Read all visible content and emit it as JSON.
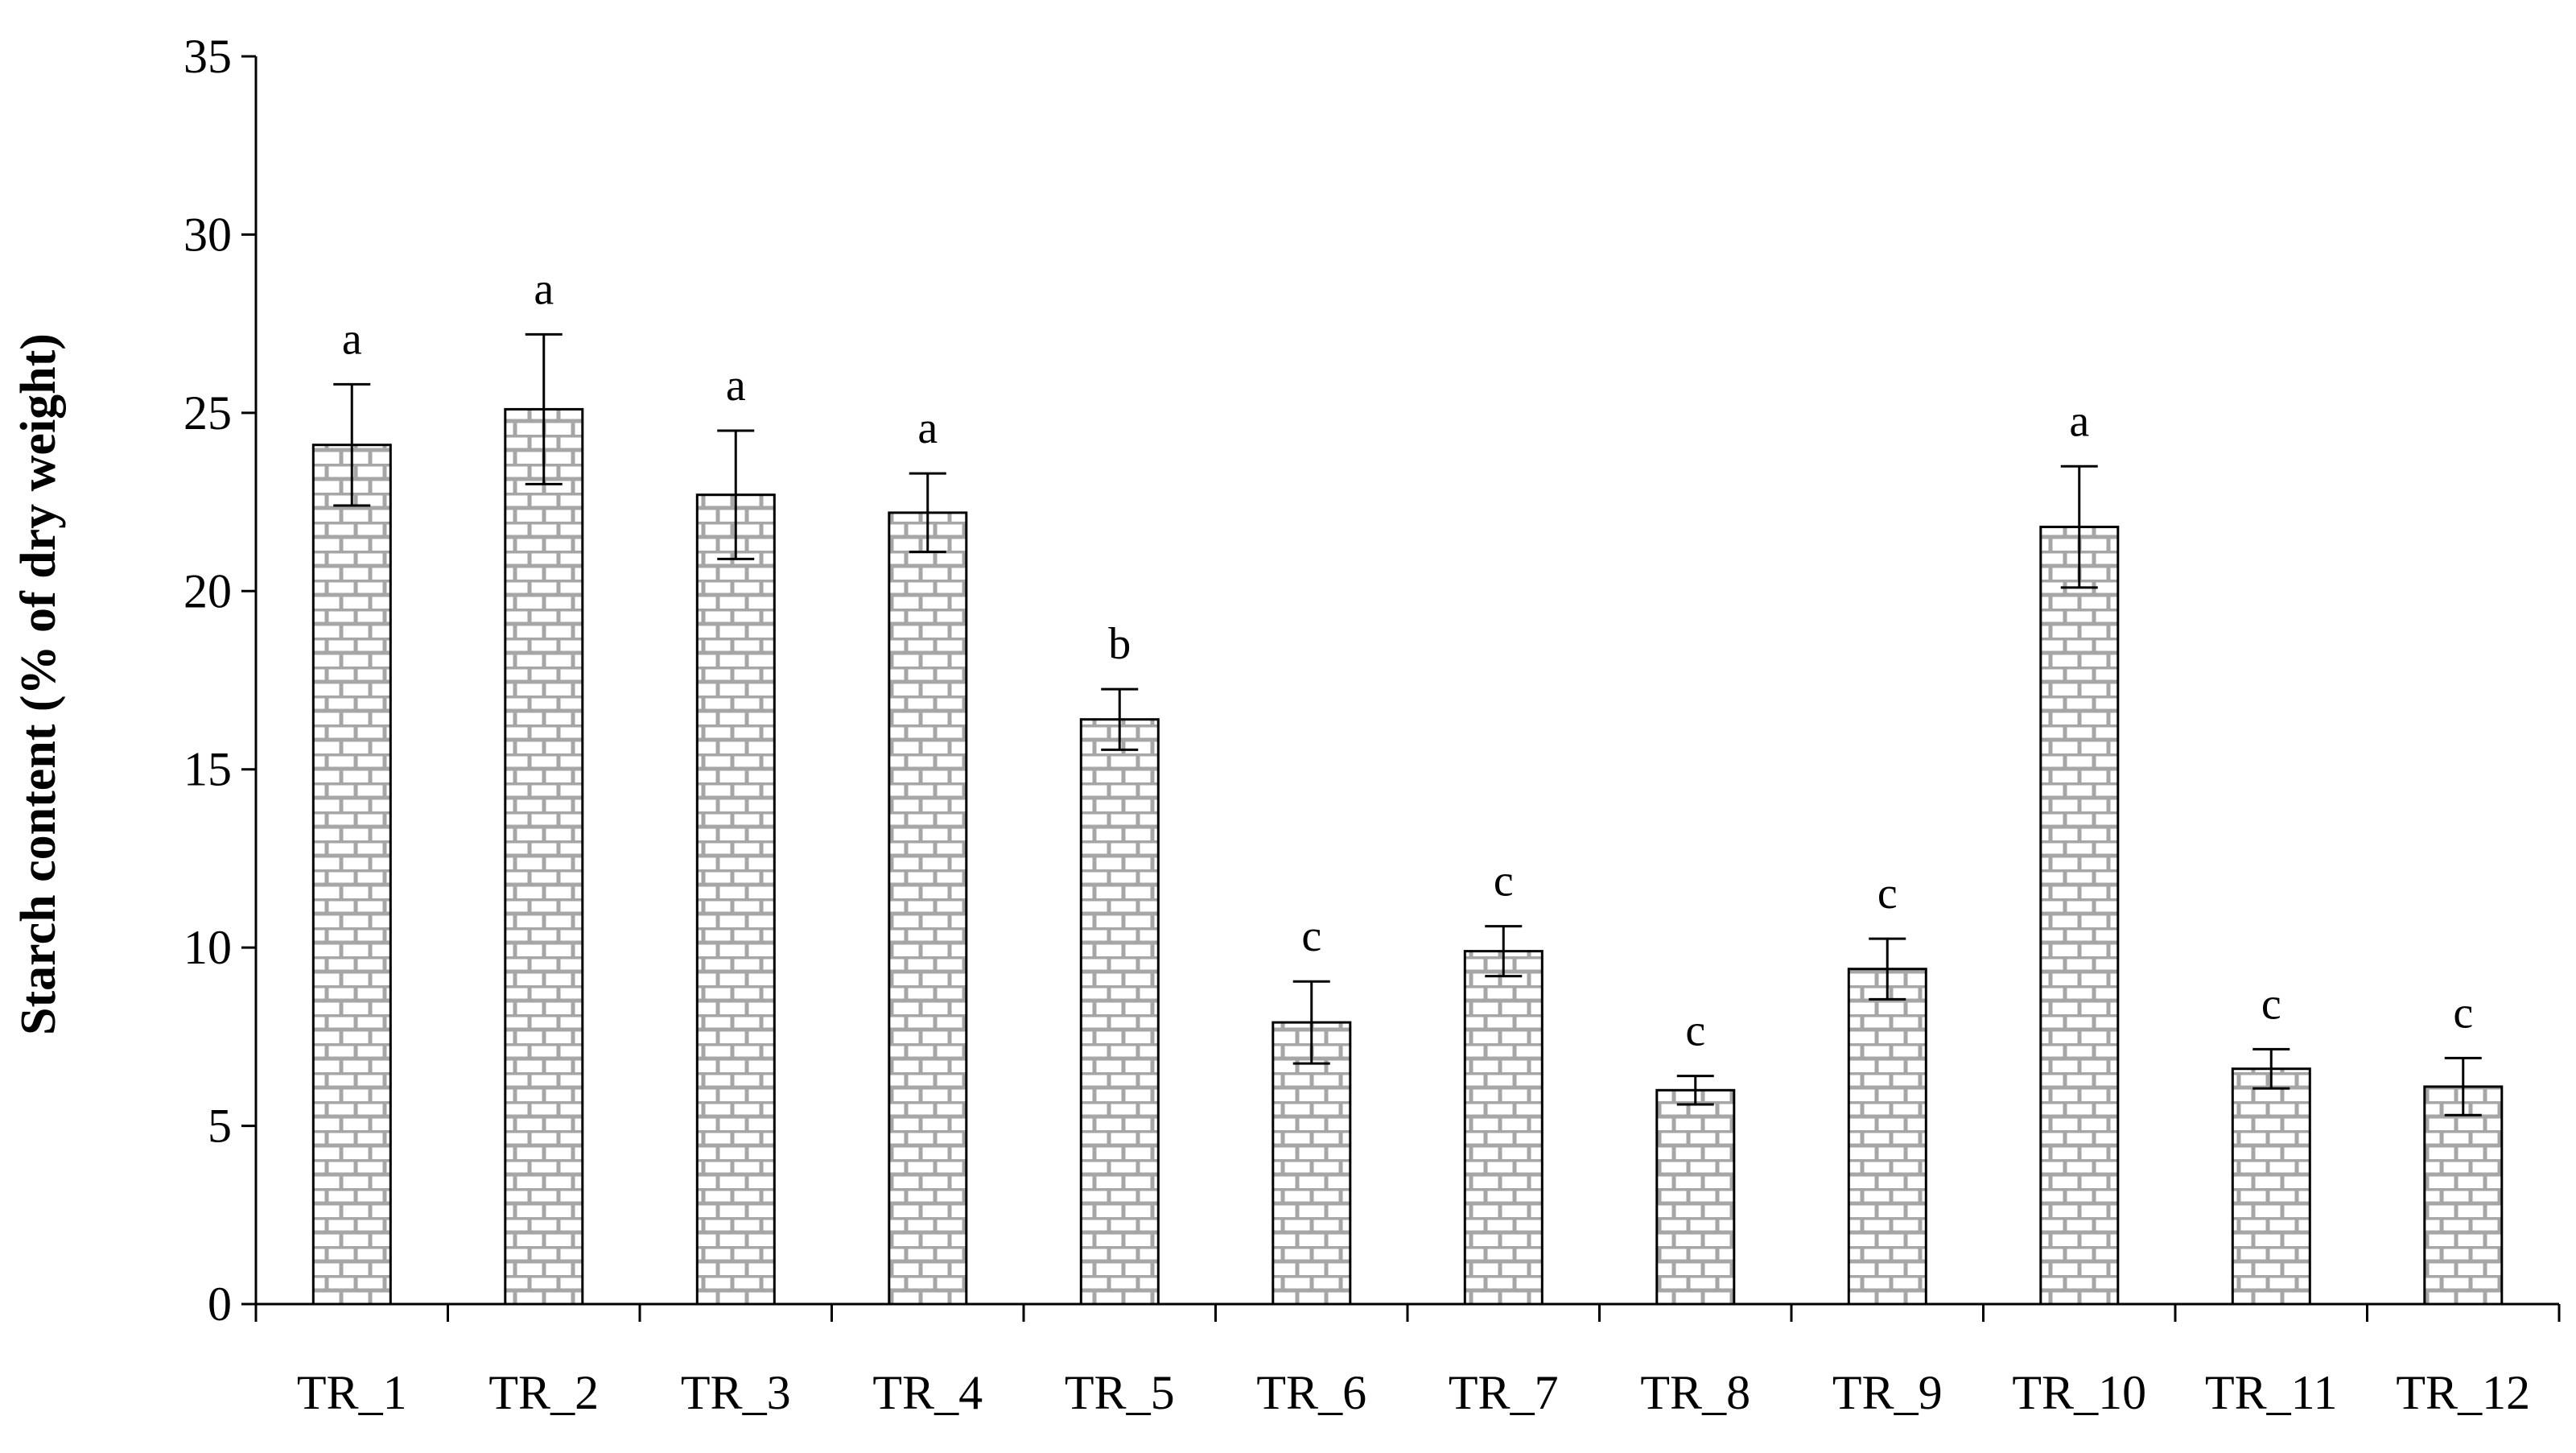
{
  "chart_data": {
    "type": "bar",
    "title": "",
    "xlabel": "",
    "ylabel": "Starch content (% of dry weight)",
    "ylim": [
      0,
      35
    ],
    "yticks": [
      0,
      5,
      10,
      15,
      20,
      25,
      30,
      35
    ],
    "categories": [
      "TR_1",
      "TR_2",
      "TR_3",
      "TR_4",
      "TR_5",
      "TR_6",
      "TR_7",
      "TR_8",
      "TR_9",
      "TR_10",
      "TR_11",
      "TR_12"
    ],
    "values": [
      24.1,
      25.1,
      22.7,
      22.2,
      16.4,
      7.9,
      9.9,
      6.0,
      9.4,
      21.8,
      6.6,
      6.1
    ],
    "errors": [
      1.7,
      2.1,
      1.8,
      1.1,
      0.85,
      1.15,
      0.7,
      0.4,
      0.85,
      1.7,
      0.55,
      0.8
    ],
    "significance": [
      "a",
      "a",
      "a",
      "a",
      "b",
      "c",
      "c",
      "c",
      "c",
      "a",
      "c",
      "c"
    ],
    "grid": false,
    "legend": "none",
    "bar_fill": "brick-pattern",
    "colors": {
      "bar_stroke": "#000000",
      "brick_fill": "#ffffff",
      "brick_line": "#a6a6a6"
    }
  }
}
